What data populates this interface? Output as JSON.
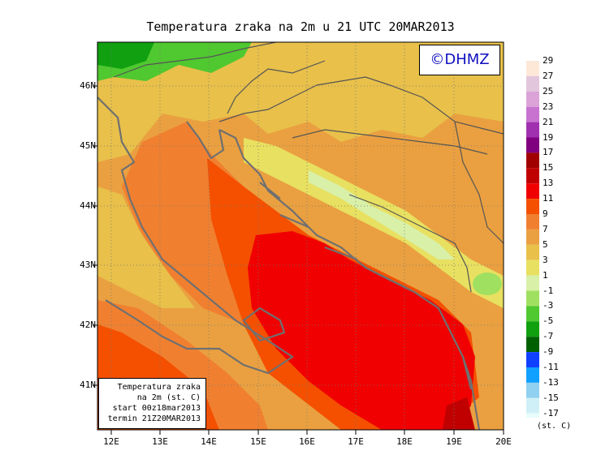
{
  "title": "Temperatura zraka na 2m u 21 UTC 20MAR2013",
  "logo": "©DHMZ",
  "info_box": [
    "Temperatura zraka",
    "na 2m (st. C)",
    "start 00z18mar2013",
    "termin 21Z20MAR2013"
  ],
  "lat_labels": [
    "46N",
    "45N",
    "44N",
    "43N",
    "42N",
    "41N"
  ],
  "lon_labels": [
    "12E",
    "13E",
    "14E",
    "15E",
    "16E",
    "17E",
    "18E",
    "19E",
    "20E"
  ],
  "colorbar": {
    "labels": [
      "29",
      "27",
      "25",
      "23",
      "21",
      "19",
      "17",
      "15",
      "13",
      "11",
      "9",
      "7",
      "5",
      "3",
      "1",
      "-1",
      "-3",
      "-5",
      "-7",
      "-9",
      "-11",
      "-13",
      "-15",
      "-17"
    ],
    "colors": [
      "#fde8d8",
      "#e2c6dc",
      "#dba3d8",
      "#c873d0",
      "#a030b0",
      "#800080",
      "#a00000",
      "#c00000",
      "#f00000",
      "#f45000",
      "#f08030",
      "#eaa040",
      "#e8c04a",
      "#e8e060",
      "#d8f0a8",
      "#a0e060",
      "#50c830",
      "#10a010",
      "#006000",
      "#1040ff",
      "#10a0ff",
      "#90d0f0",
      "#d0f0f8",
      "#e8fcfc"
    ],
    "units": "(st. C)"
  },
  "chart_data": {
    "type": "heatmap",
    "title": "Temperatura zraka na 2m u 21 UTC 20MAR2013",
    "variable": "2m air temperature",
    "units": "st. C",
    "lat_range": [
      40.3,
      46.75
    ],
    "lon_range": [
      11.75,
      20.0
    ],
    "regions": [
      {
        "area": "southern Adriatic / Ionian Sea",
        "approx_value": 14
      },
      {
        "area": "central Adriatic",
        "approx_value": 11
      },
      {
        "area": "northern Adriatic / Italian coast",
        "approx_value": 9
      },
      {
        "area": "Croatian interior / Slavonia",
        "approx_value": 6
      },
      {
        "area": "Dinaric Alps",
        "approx_value": 1
      },
      {
        "area": "Alps (NW corner)",
        "approx_value": -4
      }
    ]
  }
}
